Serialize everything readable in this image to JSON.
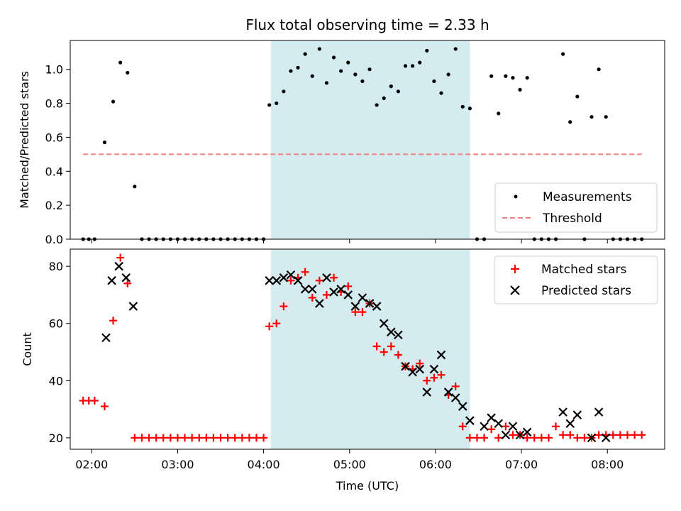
{
  "chart_data": [
    {
      "type": "scatter",
      "title": "Flux total observing time = 2.33 h",
      "ylabel": "Matched/Predicted stars",
      "xlabel": "",
      "xlim": [
        "01:45",
        "08:40"
      ],
      "ylim": [
        0,
        1.17
      ],
      "yticks": [
        "0.0",
        "0.2",
        "0.4",
        "0.6",
        "0.8",
        "1.0"
      ],
      "ytick_values": [
        0,
        0.2,
        0.4,
        0.6,
        0.8,
        1.0
      ],
      "grid": false,
      "legend_position": "lower-right",
      "shaded_interval": [
        "04:05",
        "06:24"
      ],
      "shaded_color": "#d4ebf0",
      "series": [
        {
          "name": "Measurements",
          "marker": "dot",
          "color": "#000000",
          "x": [
            "01:54",
            "01:58",
            "02:02",
            "02:09",
            "02:15",
            "02:20",
            "02:25",
            "02:30",
            "02:35",
            "02:40",
            "02:45",
            "02:50",
            "02:55",
            "03:00",
            "03:05",
            "03:10",
            "03:15",
            "03:20",
            "03:25",
            "03:30",
            "03:35",
            "03:40",
            "03:45",
            "03:50",
            "03:55",
            "04:00",
            "04:04",
            "04:09",
            "04:14",
            "04:19",
            "04:24",
            "04:29",
            "04:34",
            "04:39",
            "04:44",
            "04:49",
            "04:54",
            "04:59",
            "05:04",
            "05:09",
            "05:14",
            "05:19",
            "05:24",
            "05:29",
            "05:34",
            "05:39",
            "05:44",
            "05:49",
            "05:54",
            "05:59",
            "06:04",
            "06:09",
            "06:14",
            "06:19",
            "06:24",
            "06:29",
            "06:34",
            "06:39",
            "06:44",
            "06:49",
            "06:54",
            "06:59",
            "07:04",
            "07:09",
            "07:14",
            "07:19",
            "07:24",
            "07:29",
            "07:34",
            "07:39",
            "07:44",
            "07:49",
            "07:54",
            "07:59",
            "08:04",
            "08:09",
            "08:14",
            "08:19",
            "08:24"
          ],
          "y": [
            0,
            0,
            0,
            0.57,
            0.81,
            1.04,
            0.98,
            0.31,
            0,
            0,
            0,
            0,
            0,
            0,
            0,
            0,
            0,
            0,
            0,
            0,
            0,
            0,
            0,
            0,
            0,
            0,
            0.79,
            0.8,
            0.87,
            0.99,
            1.01,
            1.09,
            0.96,
            1.12,
            0.92,
            1.07,
            0.99,
            1.04,
            0.97,
            0.93,
            1.0,
            0.79,
            0.83,
            0.9,
            0.87,
            1.02,
            1.02,
            1.04,
            1.11,
            0.93,
            0.86,
            0.97,
            1.12,
            0.78,
            0.77,
            0,
            0,
            0.96,
            0.74,
            0.96,
            0.95,
            0.88,
            0.95,
            0,
            0,
            0,
            0,
            1.09,
            0.69,
            0.84,
            0,
            0.72,
            1.0,
            0.72,
            0,
            0,
            0,
            0,
            0
          ]
        },
        {
          "name": "Threshold",
          "marker": "dashed-line",
          "color": "#f08080",
          "x": [
            "01:54",
            "08:24"
          ],
          "y": [
            0.5,
            0.5
          ]
        }
      ]
    },
    {
      "type": "scatter",
      "title": "",
      "xlabel": "Time (UTC)",
      "ylabel": "Count",
      "xlim": [
        "01:45",
        "08:40"
      ],
      "ylim": [
        16,
        86
      ],
      "xticks": [
        "02:00",
        "03:00",
        "04:00",
        "05:00",
        "06:00",
        "07:00",
        "08:00"
      ],
      "yticks": [
        "20",
        "40",
        "60",
        "80"
      ],
      "ytick_values": [
        20,
        40,
        60,
        80
      ],
      "grid": false,
      "legend_position": "upper-right",
      "shaded_interval": [
        "04:05",
        "06:24"
      ],
      "shaded_color": "#d4ebf0",
      "series": [
        {
          "name": "Matched stars",
          "marker": "plus",
          "color": "#ff0000",
          "x": [
            "01:54",
            "01:58",
            "02:02",
            "02:09",
            "02:15",
            "02:20",
            "02:25",
            "02:30",
            "02:35",
            "02:40",
            "02:45",
            "02:50",
            "02:55",
            "03:00",
            "03:05",
            "03:10",
            "03:15",
            "03:20",
            "03:25",
            "03:30",
            "03:35",
            "03:40",
            "03:45",
            "03:50",
            "03:55",
            "04:00",
            "04:04",
            "04:09",
            "04:14",
            "04:19",
            "04:24",
            "04:29",
            "04:34",
            "04:39",
            "04:44",
            "04:49",
            "04:54",
            "04:59",
            "05:04",
            "05:09",
            "05:14",
            "05:19",
            "05:24",
            "05:29",
            "05:34",
            "05:39",
            "05:44",
            "05:49",
            "05:54",
            "05:59",
            "06:04",
            "06:09",
            "06:14",
            "06:19",
            "06:24",
            "06:29",
            "06:34",
            "06:39",
            "06:44",
            "06:49",
            "06:54",
            "06:59",
            "07:04",
            "07:09",
            "07:14",
            "07:19",
            "07:24",
            "07:29",
            "07:34",
            "07:39",
            "07:44",
            "07:49",
            "07:54",
            "07:59",
            "08:04",
            "08:09",
            "08:14",
            "08:19",
            "08:24"
          ],
          "y": [
            33,
            33,
            33,
            31,
            61,
            83,
            74,
            20,
            20,
            20,
            20,
            20,
            20,
            20,
            20,
            20,
            20,
            20,
            20,
            20,
            20,
            20,
            20,
            20,
            20,
            20,
            59,
            60,
            66,
            75,
            76,
            78,
            69,
            75,
            70,
            76,
            71,
            73,
            64,
            64,
            67,
            52,
            50,
            52,
            49,
            45,
            44,
            46,
            40,
            41,
            42,
            35,
            38,
            24,
            20,
            20,
            20,
            23,
            20,
            24,
            21,
            21,
            20,
            20,
            20,
            20,
            24,
            21,
            21,
            20,
            20,
            20,
            21,
            21,
            21,
            21,
            21,
            21,
            21
          ]
        },
        {
          "name": "Predicted stars",
          "marker": "x",
          "color": "#000000",
          "x": [
            "02:10",
            "02:14",
            "02:19",
            "02:24",
            "02:29",
            "04:04",
            "04:09",
            "04:14",
            "04:19",
            "04:24",
            "04:29",
            "04:34",
            "04:39",
            "04:44",
            "04:49",
            "04:54",
            "04:59",
            "05:04",
            "05:09",
            "05:14",
            "05:19",
            "05:24",
            "05:29",
            "05:34",
            "05:39",
            "05:44",
            "05:49",
            "05:54",
            "05:59",
            "06:04",
            "06:09",
            "06:14",
            "06:19",
            "06:24",
            "06:34",
            "06:39",
            "06:44",
            "06:49",
            "06:54",
            "06:59",
            "07:04",
            "07:29",
            "07:34",
            "07:39",
            "07:49",
            "07:54",
            "07:59"
          ],
          "y": [
            55,
            75,
            80,
            76,
            66,
            75,
            75,
            76,
            77,
            75,
            72,
            72,
            67,
            76,
            71,
            72,
            70,
            66,
            69,
            67,
            66,
            60,
            57,
            56,
            45,
            43,
            44,
            36,
            44,
            49,
            36,
            34,
            31,
            26,
            24,
            27,
            25,
            21,
            24,
            21,
            22,
            29,
            25,
            28,
            20,
            29,
            20
          ]
        }
      ]
    }
  ]
}
